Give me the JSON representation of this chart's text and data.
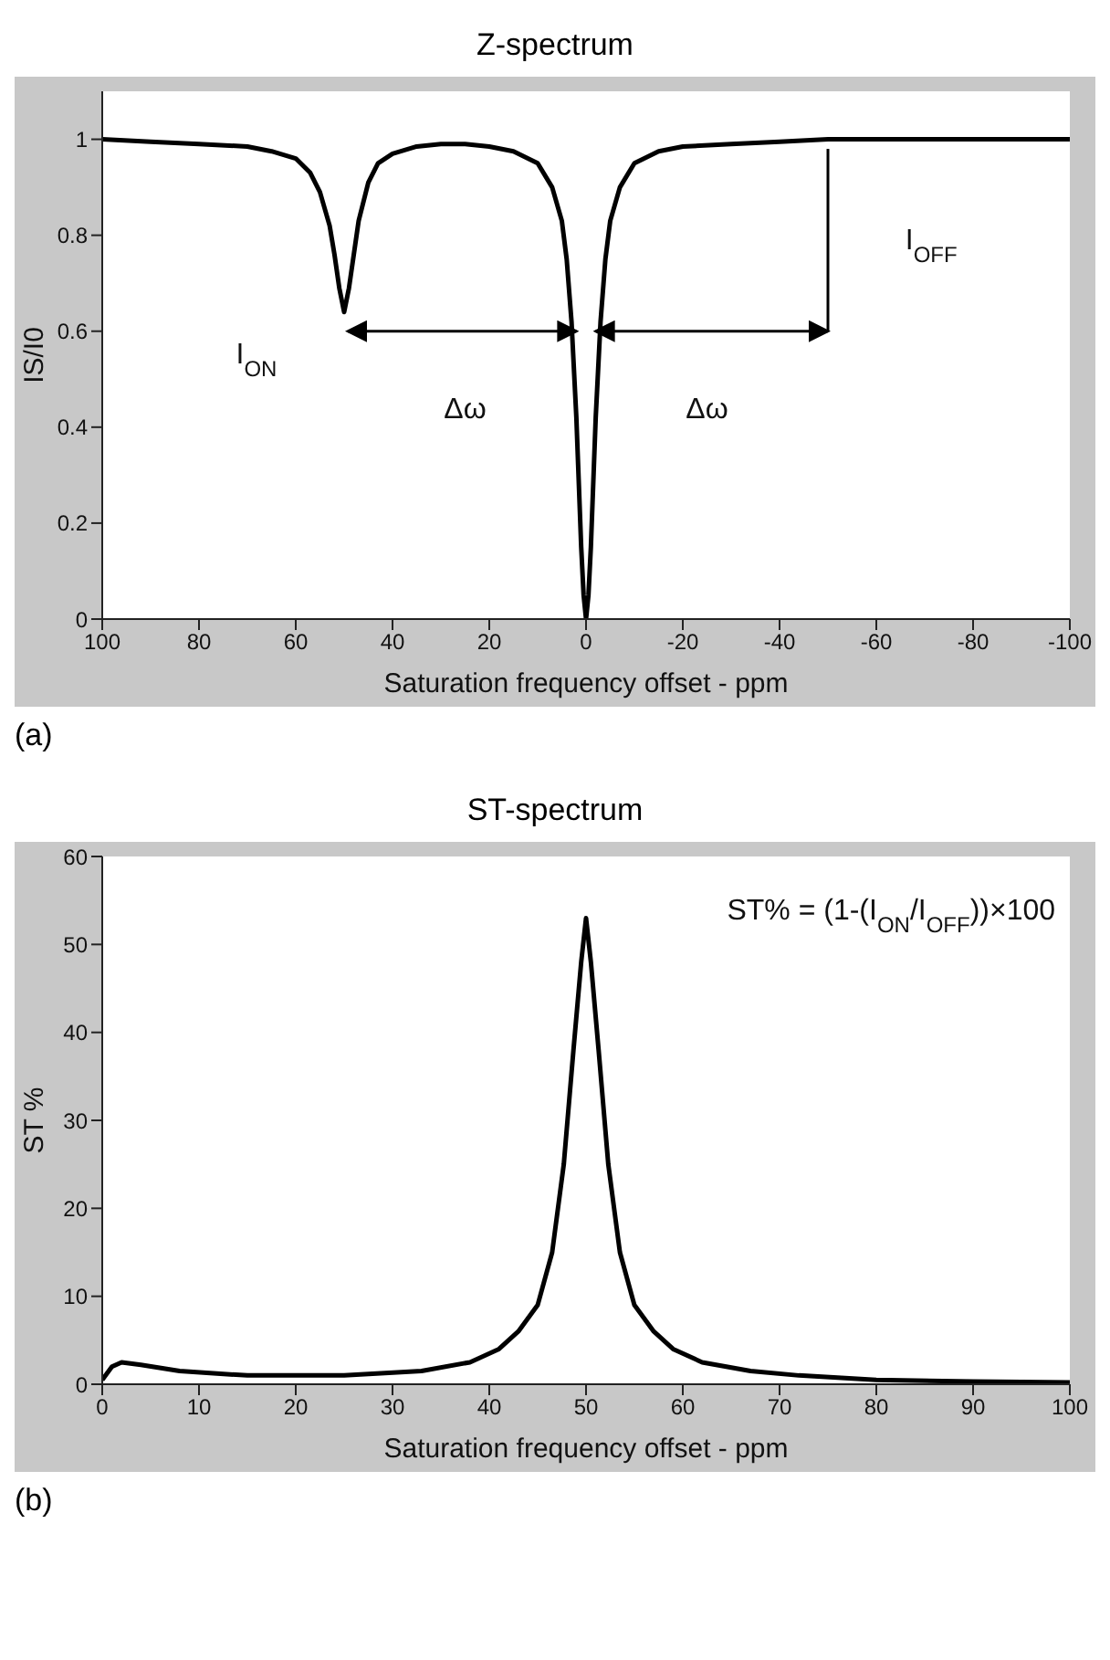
{
  "chart_data": [
    {
      "type": "line",
      "title": "Z-spectrum",
      "xlabel": "Saturation frequency offset - ppm",
      "ylabel": "IS/I0",
      "x": [
        100,
        90,
        80,
        70,
        65,
        60,
        57,
        55,
        53,
        52,
        51,
        50,
        49,
        48,
        47,
        45,
        43,
        40,
        35,
        30,
        25,
        20,
        15,
        10,
        7,
        5,
        4,
        3,
        2,
        1,
        0.5,
        0,
        -0.5,
        -1,
        -2,
        -3,
        -4,
        -5,
        -7,
        -10,
        -15,
        -20,
        -30,
        -40,
        -50,
        -60,
        -80,
        -100
      ],
      "series": [
        {
          "color": "#000000",
          "values": [
            1.0,
            0.995,
            0.99,
            0.985,
            0.975,
            0.96,
            0.93,
            0.89,
            0.82,
            0.76,
            0.69,
            0.64,
            0.69,
            0.76,
            0.83,
            0.91,
            0.95,
            0.97,
            0.985,
            0.99,
            0.99,
            0.985,
            0.975,
            0.95,
            0.9,
            0.83,
            0.75,
            0.62,
            0.42,
            0.15,
            0.05,
            0,
            0.05,
            0.15,
            0.42,
            0.62,
            0.75,
            0.83,
            0.9,
            0.95,
            0.975,
            0.985,
            0.99,
            0.995,
            1.0,
            1.0,
            1.0,
            1.0
          ]
        }
      ],
      "xlim": [
        100,
        -100
      ],
      "xticks": [
        100,
        80,
        60,
        40,
        20,
        0,
        -20,
        -40,
        -60,
        -80,
        -100
      ],
      "ylim": [
        0,
        1.1
      ],
      "yticks": [
        0,
        0.2,
        0.4,
        0.6,
        0.8,
        1
      ],
      "grid": false,
      "legend": false,
      "marker": "none",
      "line_style": "solid",
      "annotations": [
        {
          "text": "I$_{ON}$",
          "x": 50,
          "y": 0.64
        },
        "I$_{OFF}$",
        "Δω",
        "Δω",
        "(a)"
      ]
    },
    {
      "type": "line",
      "title": "ST-spectrum",
      "xlabel": "Saturation frequency offset - ppm",
      "ylabel": "ST %",
      "x": [
        0,
        1,
        2,
        4,
        8,
        15,
        25,
        33,
        38,
        41,
        43,
        45,
        46.5,
        47.7,
        48.7,
        49.5,
        50,
        50.5,
        51.3,
        52.3,
        53.5,
        55,
        57,
        59,
        62,
        67,
        72,
        80,
        90,
        100
      ],
      "series": [
        {
          "color": "#000000",
          "values": [
            0.5,
            2,
            2.5,
            2.2,
            1.5,
            1,
            1,
            1.5,
            2.5,
            4,
            6,
            9,
            15,
            25,
            38,
            48,
            53,
            48,
            38,
            25,
            15,
            9,
            6,
            4,
            2.5,
            1.5,
            1,
            0.5,
            0.3,
            0.2
          ]
        }
      ],
      "xlim": [
        0,
        100
      ],
      "xticks": [
        0,
        10,
        20,
        30,
        40,
        50,
        60,
        70,
        80,
        90,
        100
      ],
      "ylim": [
        0,
        60
      ],
      "yticks": [
        0,
        10,
        20,
        30,
        40,
        50,
        60
      ],
      "grid": false,
      "legend": false,
      "marker": "none",
      "line_style": "solid",
      "annotations": [
        "ST% = (1-(I$_{ON}$/I$_{OFF}$))×100",
        "(b)"
      ]
    }
  ]
}
